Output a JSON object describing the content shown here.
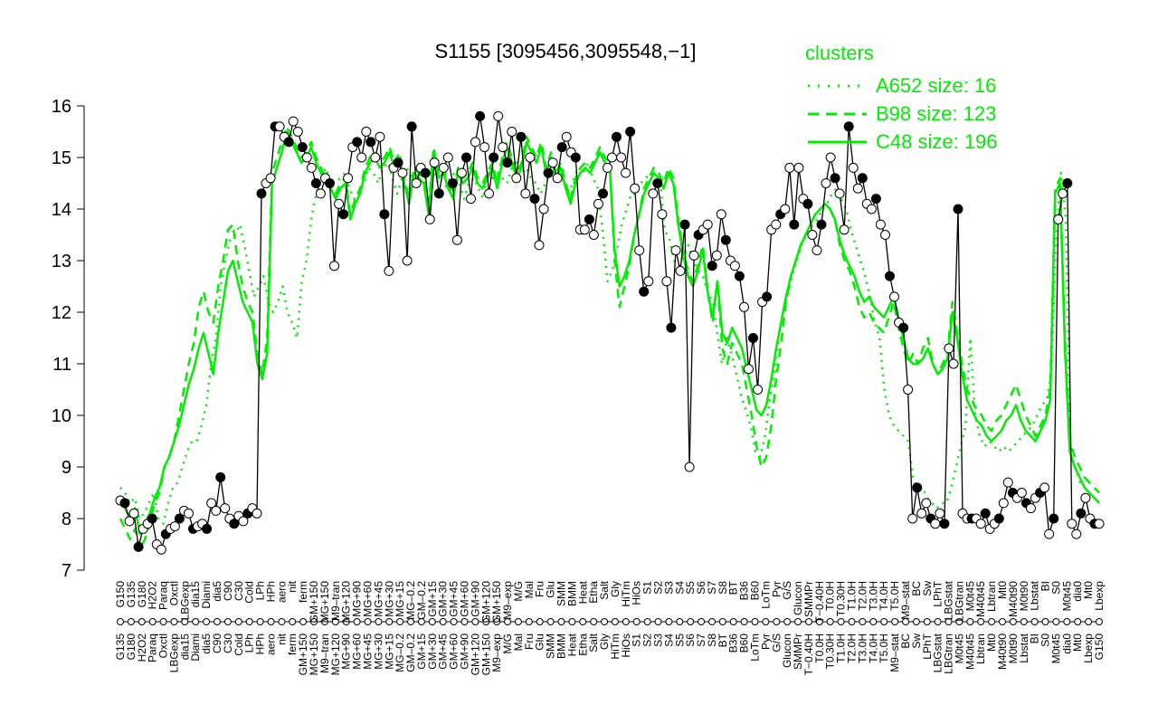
{
  "chart_data": {
    "type": "line",
    "title": "S1155 [3095456,3095548,−1]",
    "xlabel": "",
    "ylabel": "",
    "ylim": [
      7,
      16
    ],
    "yticks": [
      7,
      8,
      9,
      10,
      11,
      12,
      13,
      14,
      15,
      16
    ],
    "x_tick_labels": [
      "G150",
      "G135",
      "G180",
      "H2O2",
      "Paraq",
      "Oxctl",
      "LBGexp",
      "dia15",
      "Diami",
      "dia5",
      "C90",
      "C30",
      "Cold",
      "LPh",
      "HPh",
      "aero",
      "nit",
      "ferm",
      "GM+150",
      "MG+150",
      "M9–tran",
      "MG+120",
      "MG+90",
      "MG+60",
      "MG+45",
      "MG+30",
      "MG+15",
      "MG–0.2",
      "GM–0.2",
      "GM+15",
      "GM+30",
      "GM+45",
      "GM+60",
      "GM+90",
      "GM+120",
      "GM+150",
      "M9–exp",
      "M/G",
      "Mal",
      "Fru",
      "Glu",
      "SMM",
      "BMM",
      "Heat",
      "Etha",
      "Salt",
      "Gly",
      "HiTm",
      "HiOs",
      "S1",
      "S2",
      "S3",
      "S4",
      "S5",
      "S6",
      "S7",
      "S8",
      "BT",
      "B36",
      "B60",
      "LoTm",
      "Pyr",
      "G/S",
      "Glucon",
      "SMMPr",
      "T−0.40H",
      "T0.0H",
      "T0.30H",
      "T1.0H",
      "T2.0H",
      "T3.0H",
      "T4.0H",
      "T5.0H",
      "M9–stat",
      "BC",
      "Sw",
      "LPhT",
      "LBGstat",
      "LBGtran",
      "M0t45",
      "M40t45",
      "Lbtran",
      "Mt0",
      "M40t90",
      "M0t90",
      "Lbstat",
      "BI",
      "S0",
      "M0t45",
      "dia0",
      "Mt0",
      "Lbexp"
    ],
    "series": [
      {
        "name": "",
        "description_color": "black",
        "values": [
          8.35,
          8.3,
          7.95,
          8.1,
          7.45,
          7.8,
          7.9,
          8.0,
          7.5,
          7.4,
          7.7,
          7.8,
          7.85,
          8.0,
          8.15,
          8.1,
          7.8,
          7.85,
          7.9,
          7.8,
          8.3,
          8.15,
          8.8,
          8.2,
          8.0,
          7.9,
          8.05,
          7.95,
          8.1,
          8.2,
          8.1,
          14.3,
          14.5,
          14.6,
          15.6,
          15.6,
          15.4,
          15.3,
          15.7,
          15.5,
          15.2,
          15.0,
          14.8,
          14.5,
          14.3,
          14.6,
          14.5,
          12.9,
          14.1,
          13.9,
          14.6,
          15.2,
          15.3,
          15.0,
          15.5,
          15.3,
          15.0,
          15.4,
          13.9,
          12.8,
          14.8,
          14.9,
          14.7,
          13.0,
          15.6,
          14.5,
          14.8,
          14.7,
          13.8,
          14.9,
          14.3,
          14.8,
          15.0,
          14.5,
          13.4,
          14.7,
          15.0,
          14.2,
          15.3,
          15.8,
          15.2,
          14.3,
          15.0,
          15.8,
          15.2,
          14.9,
          15.5,
          14.6,
          15.4,
          14.3,
          15.0,
          14.2,
          13.3,
          14.0,
          14.7,
          14.9,
          14.6,
          15.2,
          15.4,
          15.1,
          15.0,
          13.6,
          13.6,
          13.8,
          13.5,
          14.1,
          14.3,
          14.8,
          15.0,
          15.4,
          15.0,
          14.7,
          15.5,
          14.4,
          13.2,
          12.4,
          12.6,
          14.3,
          14.5,
          13.9,
          12.6,
          11.7,
          13.2,
          12.8,
          13.7,
          9.0,
          13.1,
          13.5,
          13.6,
          13.7,
          12.9,
          13.1,
          13.9,
          13.4,
          13.0,
          12.9,
          12.7,
          12.1,
          10.9,
          11.5,
          10.5,
          12.2,
          12.3,
          13.6,
          13.7,
          13.9,
          14.0,
          14.8,
          13.7,
          14.8,
          14.2,
          14.1,
          13.5,
          13.2,
          13.7,
          14.5,
          15.0,
          14.6,
          14.3,
          13.6,
          15.6,
          14.8,
          14.4,
          14.6,
          14.1,
          14.0,
          14.2,
          13.7,
          13.5,
          12.7,
          12.3,
          11.8,
          11.7,
          10.5,
          8.0,
          8.6,
          8.1,
          8.3,
          8.0,
          7.9,
          8.1,
          7.9,
          11.3,
          11.0,
          14.0,
          8.1,
          8.0,
          8.0,
          8.0,
          7.9,
          8.1,
          7.8,
          7.9,
          8.0,
          8.3,
          8.7,
          8.5,
          8.4,
          8.5,
          8.3,
          8.2,
          8.4,
          8.5,
          8.6,
          7.7,
          8.0,
          13.8,
          14.3,
          14.5,
          7.9,
          7.7,
          8.1,
          8.4,
          8.0,
          7.9,
          7.9
        ]
      },
      {
        "name": "A652 size: 16",
        "values": [
          8.6,
          8.5,
          8.3,
          8.4,
          8.0,
          8.1,
          8.3,
          8.5,
          8.0,
          7.9,
          8.3,
          8.6,
          8.7,
          9.0,
          9.3,
          9.5,
          9.5,
          9.8,
          10.2,
          11.0,
          11.5,
          12.5,
          13.0,
          13.4,
          13.5,
          13.7,
          13.3,
          12.8,
          12.3,
          12.5,
          12.7,
          12.2,
          12.0,
          12.2,
          12.5,
          12.0,
          11.8,
          11.5,
          12.6,
          13.0,
          13.8,
          14.3,
          14.6,
          14.8,
          14.5,
          14.5,
          14.6,
          14.7,
          14.4,
          14.2,
          14.3,
          14.5,
          14.8,
          14.7,
          14.5,
          14.8,
          14.9,
          14.6,
          14.3,
          14.6,
          14.8,
          14.6,
          14.8,
          14.5,
          14.6,
          14.7,
          14.7,
          14.3,
          14.4,
          14.6,
          14.7,
          14.5,
          14.2,
          14.5,
          14.6,
          14.4,
          14.2,
          14.7,
          14.6,
          14.7,
          14.6,
          14.5,
          14.8,
          14.9,
          14.7,
          14.8,
          14.6,
          14.5,
          14.3,
          14.5,
          14.7,
          14.6,
          14.7,
          14.5,
          14.3,
          14.6,
          14.8,
          14.7,
          14.9,
          14.6,
          14.4,
          13.6,
          12.6,
          12.8,
          13.2,
          13.7,
          14.0,
          14.3,
          14.3,
          14.5,
          14.6,
          14.7,
          14.5,
          14.6,
          13.6,
          13.4,
          13.0,
          12.9,
          13.1,
          13.3,
          13.0,
          12.8,
          12.7,
          12.4,
          12.2,
          11.6,
          11.0,
          11.5,
          11.2,
          10.8,
          10.4,
          10.1,
          9.8,
          9.3,
          9.2,
          9.6,
          10.3,
          10.8,
          11.6,
          12.1,
          12.4,
          12.8,
          13.1,
          13.4,
          13.5,
          13.7,
          13.8,
          14.0,
          14.1,
          14.3,
          14.4,
          14.2,
          14.0,
          13.6,
          13.3,
          13.0,
          12.7,
          12.3,
          11.8,
          11.5,
          10.5,
          10.0,
          9.8,
          9.7,
          9.6,
          9.5,
          8.8,
          8.5,
          8.6,
          8.4,
          8.3,
          8.2,
          8.3,
          8.3,
          8.6,
          9.0,
          9.4,
          9.8,
          11.5,
          10.0,
          9.6,
          9.4,
          9.5,
          9.4,
          9.3,
          9.4,
          9.3,
          9.4,
          9.5,
          9.6,
          9.7,
          9.8,
          10.0,
          10.2,
          10.3,
          10.8,
          13.5,
          14.7,
          13.8,
          9.2,
          9.0,
          8.7,
          8.6,
          8.5,
          8.4,
          8.3
        ]
      },
      {
        "name": "B98 size: 123",
        "values": [
          8.0,
          7.8,
          7.6,
          7.8,
          7.4,
          7.6,
          7.9,
          8.3,
          8.5,
          9.0,
          9.2,
          9.5,
          10.0,
          10.5,
          11.0,
          11.4,
          12.1,
          12.4,
          12.0,
          11.8,
          12.5,
          13.0,
          13.6,
          13.7,
          13.0,
          12.5,
          12.2,
          12.0,
          11.2,
          10.8,
          11.5,
          14.7,
          15.0,
          15.3,
          15.6,
          15.4,
          15.2,
          15.0,
          15.1,
          15.3,
          15.0,
          14.8,
          14.6,
          14.5,
          14.3,
          14.5,
          14.6,
          13.9,
          14.2,
          14.4,
          14.8,
          15.0,
          15.1,
          14.9,
          15.0,
          15.2,
          14.9,
          15.1,
          14.6,
          14.2,
          14.8,
          14.7,
          14.6,
          14.0,
          15.2,
          14.7,
          14.8,
          14.5,
          14.3,
          14.8,
          14.6,
          14.7,
          14.9,
          14.6,
          14.5,
          14.7,
          14.9,
          14.5,
          15.0,
          15.3,
          15.0,
          14.7,
          14.9,
          15.4,
          15.2,
          15.0,
          15.3,
          14.8,
          15.1,
          14.7,
          14.9,
          14.5,
          14.2,
          14.6,
          14.8,
          14.9,
          14.8,
          15.0,
          15.2,
          15.0,
          14.9,
          13.0,
          12.1,
          12.5,
          12.9,
          13.5,
          13.9,
          14.4,
          14.6,
          14.8,
          14.7,
          14.5,
          14.8,
          14.6,
          13.8,
          13.2,
          12.8,
          12.6,
          12.9,
          13.3,
          12.4,
          11.8,
          12.6,
          11.3,
          11.0,
          11.4,
          11.2,
          11.0,
          10.5,
          10.0,
          9.4,
          9.0,
          9.2,
          9.8,
          10.7,
          11.4,
          12.2,
          12.7,
          13.0,
          13.3,
          13.5,
          13.7,
          13.9,
          14.0,
          14.1,
          14.0,
          13.8,
          13.3,
          13.0,
          12.8,
          12.5,
          12.1,
          11.9,
          12.0,
          11.8,
          11.7,
          11.6,
          11.9,
          12.2,
          11.7,
          11.3,
          11.0,
          11.2,
          11.0,
          11.3,
          11.5,
          11.0,
          10.8,
          11.0,
          11.2,
          12.2,
          11.6,
          11.0,
          10.5,
          10.3,
          10.1,
          10.0,
          9.8,
          9.7,
          9.9,
          10.0,
          10.2,
          10.4,
          10.6,
          10.3,
          10.0,
          9.8,
          9.6,
          9.8,
          10.0,
          10.5,
          14.4,
          14.6,
          11.5,
          9.5,
          9.2,
          9.0,
          8.8,
          8.7,
          8.6,
          8.5
        ]
      },
      {
        "name": "C48 size: 196",
        "values": [
          8.3,
          8.2,
          8.0,
          8.2,
          7.7,
          7.9,
          8.1,
          8.4,
          8.6,
          9.0,
          9.2,
          9.5,
          9.8,
          10.2,
          10.6,
          10.9,
          11.3,
          11.6,
          11.2,
          10.8,
          11.6,
          12.2,
          12.8,
          13.0,
          12.6,
          12.2,
          12.0,
          11.8,
          11.0,
          10.7,
          11.2,
          14.5,
          14.8,
          15.1,
          15.5,
          15.3,
          15.1,
          14.9,
          15.0,
          15.2,
          14.9,
          14.7,
          14.5,
          14.4,
          14.2,
          14.4,
          14.5,
          13.8,
          14.1,
          14.3,
          14.7,
          14.9,
          15.0,
          14.8,
          14.9,
          15.1,
          14.8,
          15.0,
          14.5,
          14.1,
          14.7,
          14.6,
          14.5,
          13.9,
          15.1,
          14.6,
          14.7,
          14.4,
          14.2,
          14.7,
          14.5,
          14.6,
          14.8,
          14.5,
          14.4,
          14.6,
          14.8,
          14.4,
          14.9,
          15.2,
          14.9,
          14.6,
          14.8,
          15.3,
          15.1,
          14.9,
          15.2,
          14.7,
          15.0,
          14.6,
          14.8,
          14.4,
          14.1,
          14.5,
          14.7,
          14.8,
          14.7,
          14.9,
          15.1,
          14.9,
          14.8,
          13.2,
          12.5,
          12.7,
          13.0,
          13.5,
          13.9,
          14.3,
          14.5,
          14.7,
          14.6,
          14.4,
          14.7,
          14.5,
          13.7,
          13.1,
          12.7,
          12.5,
          12.8,
          13.2,
          12.4,
          11.9,
          12.6,
          11.6,
          11.4,
          11.7,
          11.5,
          11.3,
          10.9,
          10.5,
          10.1,
          10.0,
          10.2,
          10.7,
          11.3,
          11.8,
          12.3,
          12.7,
          13.0,
          13.3,
          13.5,
          13.7,
          13.9,
          14.0,
          14.1,
          14.0,
          13.8,
          13.4,
          13.1,
          12.9,
          12.7,
          12.4,
          12.2,
          12.3,
          12.1,
          12.0,
          11.9,
          12.1,
          12.3,
          11.9,
          11.5,
          11.1,
          11.0,
          11.0,
          11.1,
          11.3,
          11.0,
          10.8,
          10.9,
          11.1,
          12.0,
          11.5,
          10.8,
          10.3,
          10.1,
          9.9,
          9.8,
          9.6,
          9.5,
          9.6,
          9.7,
          9.9,
          10.0,
          10.2,
          9.9,
          9.7,
          9.6,
          9.5,
          9.7,
          9.9,
          10.3,
          14.3,
          14.5,
          11.3,
          9.3,
          9.0,
          8.8,
          8.6,
          8.5,
          8.4,
          8.3
        ]
      }
    ],
    "legend": {
      "title": "clusters",
      "position": "top-right",
      "entries": [
        {
          "label": "A652 size: 16",
          "style": "dotted"
        },
        {
          "label": "B98 size: 123",
          "style": "dashed"
        },
        {
          "label": "C48 size: 196",
          "style": "solid"
        }
      ]
    },
    "colors": {
      "clusters": "#00ee00",
      "profile": "#000000",
      "open_marker": "#ffffff"
    },
    "grid": false
  }
}
